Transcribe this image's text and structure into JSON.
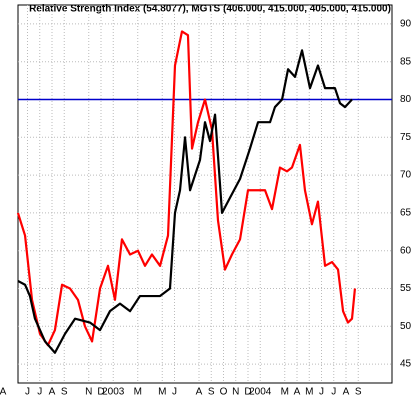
{
  "chart_data": {
    "type": "line",
    "title": "Relative Strength Index (54.8077), MGTS (406.000, 415.000, 405.000, 415.000)",
    "xlim": [
      0,
      32
    ],
    "xticks": [
      {
        "value": 0,
        "label": "A"
      },
      {
        "value": 2,
        "label": "J"
      },
      {
        "value": 3,
        "label": "J"
      },
      {
        "value": 4,
        "label": "A"
      },
      {
        "value": 5,
        "label": "S"
      },
      {
        "value": 7,
        "label": "N"
      },
      {
        "value": 8,
        "label": "D"
      },
      {
        "value": 9,
        "label": "2003"
      },
      {
        "value": 11,
        "label": "M"
      },
      {
        "value": 13,
        "label": "M"
      },
      {
        "value": 14,
        "label": "J"
      },
      {
        "value": 16,
        "label": "A"
      },
      {
        "value": 17,
        "label": "S"
      },
      {
        "value": 18,
        "label": "O"
      },
      {
        "value": 19,
        "label": "N"
      },
      {
        "value": 20,
        "label": "D"
      },
      {
        "value": 21,
        "label": "2004"
      },
      {
        "value": 23,
        "label": "M"
      },
      {
        "value": 24,
        "label": "A"
      },
      {
        "value": 25,
        "label": "M"
      },
      {
        "value": 26,
        "label": "J"
      },
      {
        "value": 27,
        "label": "J"
      },
      {
        "value": 28,
        "label": "A"
      },
      {
        "value": 29,
        "label": "S"
      }
    ],
    "ylim": [
      42.5,
      92.5
    ],
    "yticks": [
      45,
      50,
      55,
      60,
      65,
      70,
      75,
      80,
      85,
      90
    ],
    "grid": true,
    "hline": {
      "value": 80,
      "color": "#0000cc"
    },
    "series": [
      {
        "color": "#ff0000",
        "x": [
          1.22,
          1.8,
          2.37,
          3.02,
          3.67,
          4.24,
          4.82,
          5.47,
          6.12,
          6.69,
          7.27,
          7.92,
          8.57,
          9.14,
          9.71,
          10.37,
          11.02,
          11.59,
          12.16,
          12.82,
          13.47,
          14.04,
          14.61,
          15.1,
          15.43,
          15.92,
          16.49,
          17.06,
          17.55,
          18.12,
          18.69,
          19.35,
          20.0,
          20.82,
          21.39,
          21.96,
          22.61,
          23.18,
          23.59,
          24.24,
          24.65,
          25.22,
          25.71,
          26.29,
          26.86,
          27.35,
          27.76,
          28.16,
          28.49,
          28.73
        ],
        "values": [
          65,
          62,
          53.5,
          49,
          47.5,
          49.5,
          55.5,
          55,
          53.5,
          50,
          48,
          55,
          58,
          53.5,
          61.5,
          59.5,
          60,
          58,
          59.5,
          58,
          62,
          84.5,
          89,
          88.5,
          73.5,
          77,
          80,
          76,
          64,
          57.5,
          59.5,
          61.5,
          68,
          68,
          68,
          65.5,
          71,
          70.5,
          71,
          74,
          68,
          63.5,
          66.5,
          58,
          58.5,
          57.5,
          52,
          50.5,
          51,
          55
        ]
      },
      {
        "color": "#000000",
        "x": [
          1.22,
          1.8,
          2.2,
          2.61,
          3.43,
          4.24,
          5.06,
          5.88,
          7.1,
          7.92,
          8.73,
          9.55,
          10.37,
          11.18,
          12.0,
          12.82,
          13.63,
          14.04,
          14.45,
          14.86,
          15.27,
          16.08,
          16.49,
          16.9,
          17.31,
          17.88,
          18.53,
          19.35,
          20.16,
          20.82,
          21.8,
          22.2,
          22.78,
          23.27,
          23.84,
          24.41,
          25.06,
          25.71,
          26.29,
          27.1,
          27.51,
          27.92,
          28.49
        ],
        "values": [
          56,
          55.5,
          54,
          51,
          48,
          46.5,
          49,
          51,
          50.5,
          49.5,
          52,
          53,
          52,
          54,
          54,
          54,
          55,
          65,
          68,
          75,
          68,
          72,
          77,
          74.5,
          78,
          65,
          67,
          69.5,
          73.5,
          77,
          77,
          79,
          80,
          84,
          83,
          86.5,
          81.5,
          84.5,
          81.5,
          81.5,
          79.5,
          79,
          80
        ]
      }
    ]
  }
}
